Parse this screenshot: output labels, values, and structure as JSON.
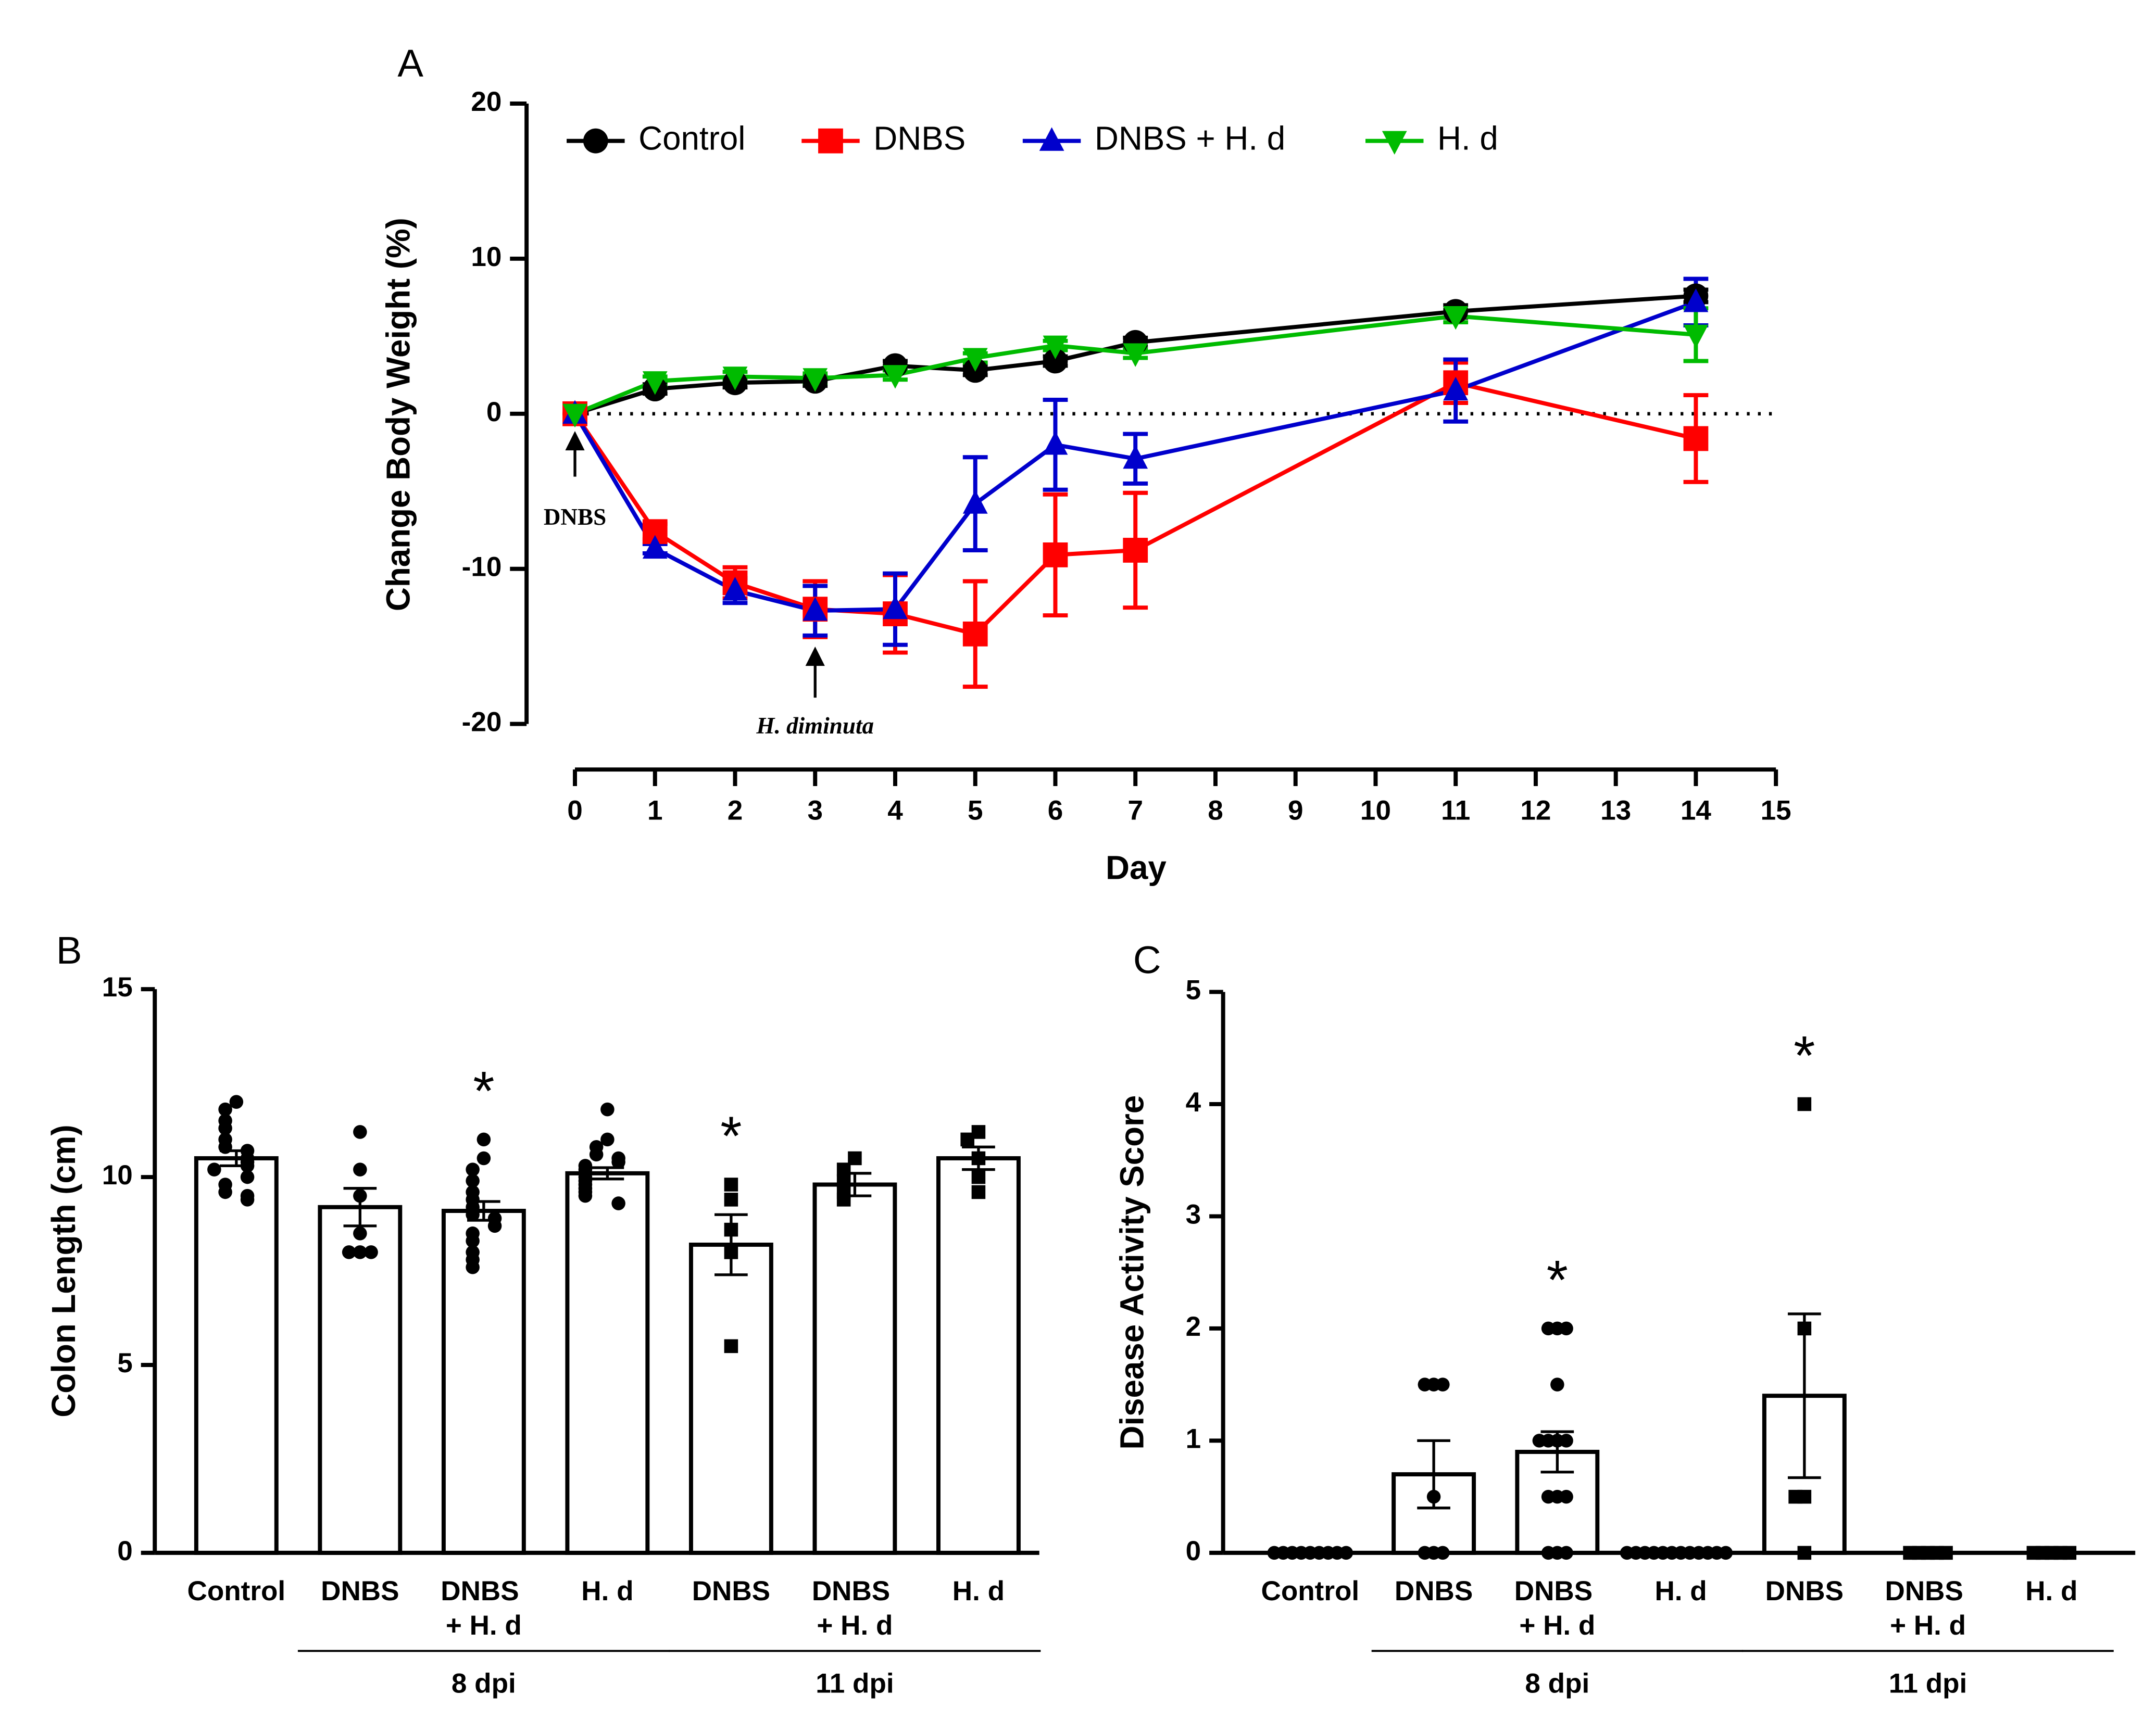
{
  "chart_data": [
    {
      "type": "line",
      "panel_label": "A",
      "ylabel": "Change Body Weight (%)",
      "xlabel": "Day",
      "x": [
        0,
        1,
        2,
        3,
        4,
        5,
        6,
        7,
        11,
        14
      ],
      "xlim": [
        0,
        15
      ],
      "xticks": [
        0,
        1,
        2,
        3,
        4,
        5,
        6,
        7,
        8,
        9,
        10,
        11,
        12,
        13,
        14,
        15
      ],
      "ylim": [
        -20,
        20
      ],
      "yticks": [
        -20,
        -10,
        0,
        10,
        20
      ],
      "hline": 0,
      "series": [
        {
          "name": "Control",
          "color": "#000000",
          "marker": "circle",
          "values": [
            0,
            1.6,
            2.0,
            2.1,
            3.1,
            2.8,
            3.4,
            4.6,
            6.6,
            7.6
          ],
          "errors": [
            0,
            0.3,
            0.3,
            0.3,
            0.3,
            0.3,
            0.3,
            0.3,
            0.4,
            0.4
          ]
        },
        {
          "name": "DNBS",
          "color": "#ff0000",
          "marker": "square",
          "values": [
            0,
            -7.6,
            -10.9,
            -12.6,
            -12.9,
            -14.2,
            -9.1,
            -8.8,
            2.0,
            -1.6
          ],
          "errors": [
            0,
            0.5,
            1.0,
            1.8,
            2.5,
            3.4,
            3.9,
            3.7,
            1.3,
            2.8
          ]
        },
        {
          "name": "DNBS + H. d",
          "color": "#0000cc",
          "marker": "triangle-up",
          "values": [
            0,
            -8.7,
            -11.4,
            -12.7,
            -12.6,
            -5.8,
            -2.0,
            -2.9,
            1.5,
            7.2
          ],
          "errors": [
            0,
            0.3,
            0.8,
            1.6,
            2.3,
            3.0,
            2.9,
            1.6,
            2.0,
            1.5
          ]
        },
        {
          "name": "H. d",
          "color": "#00bb00",
          "marker": "triangle-down",
          "values": [
            0,
            2.1,
            2.4,
            2.3,
            2.5,
            3.6,
            4.4,
            3.9,
            6.3,
            5.1
          ],
          "errors": [
            0,
            0.3,
            0.3,
            0.3,
            0.3,
            0.3,
            0.3,
            0.3,
            0.4,
            1.7
          ]
        }
      ],
      "annotations": [
        {
          "text": "DNBS",
          "x": 0
        },
        {
          "text": "H. diminuta",
          "x": 3
        }
      ]
    },
    {
      "type": "bar",
      "panel_label": "B",
      "ylabel": "Colon Length (cm)",
      "categories": [
        "Control",
        "DNBS",
        "DNBS + H. d",
        "H. d",
        "DNBS",
        "DNBS + H. d",
        "H. d"
      ],
      "values": [
        10.5,
        9.2,
        9.1,
        10.1,
        8.2,
        9.8,
        10.5
      ],
      "errors": [
        0.2,
        0.5,
        0.25,
        0.15,
        0.8,
        0.3,
        0.3
      ],
      "points": [
        [
          12.0,
          11.8,
          11.5,
          11.3,
          11.0,
          10.8,
          10.7,
          10.5,
          10.4,
          10.3,
          10.2,
          10.0,
          9.8,
          9.6,
          9.5,
          9.4
        ],
        [
          11.2,
          10.2,
          9.5,
          8.5,
          8.0,
          8.0,
          8.0
        ],
        [
          11.0,
          10.5,
          10.2,
          9.9,
          9.6,
          9.4,
          9.2,
          9.0,
          8.9,
          8.7,
          8.5,
          8.3,
          8.0,
          7.8,
          7.6
        ],
        [
          11.8,
          11.0,
          10.8,
          10.6,
          10.5,
          10.4,
          10.3,
          10.2,
          10.1,
          10.0,
          9.9,
          9.8,
          9.7,
          9.6,
          9.5,
          9.3
        ],
        [
          9.8,
          9.4,
          8.6,
          8.0,
          5.5
        ],
        [
          10.5,
          10.2,
          9.9,
          9.6,
          9.4
        ],
        [
          11.2,
          11.0,
          10.5,
          10.0,
          9.6
        ]
      ],
      "markers": [
        "circle",
        "circle",
        "circle",
        "circle",
        "square",
        "square",
        "square"
      ],
      "ylim": [
        0,
        15
      ],
      "yticks": [
        0,
        5,
        10,
        15
      ],
      "groups": [
        {
          "label": "8 dpi",
          "start": 1,
          "end": 3
        },
        {
          "label": "11 dpi",
          "start": 4,
          "end": 6
        }
      ],
      "annotations": [
        {
          "index": 2,
          "text": "*"
        },
        {
          "index": 4,
          "text": "*"
        }
      ]
    },
    {
      "type": "bar",
      "panel_label": "C",
      "ylabel": "Disease Activity Score",
      "categories": [
        "Control",
        "DNBS",
        "DNBS + H. d",
        "H. d",
        "DNBS",
        "DNBS + H. d",
        "H. d"
      ],
      "values": [
        0,
        0.7,
        0.9,
        0,
        1.4,
        0,
        0
      ],
      "errors": [
        0,
        0.3,
        0.18,
        0,
        0.73,
        0,
        0
      ],
      "points": [
        [
          0,
          0,
          0,
          0,
          0,
          0,
          0,
          0,
          0
        ],
        [
          1.5,
          1.5,
          1.5,
          0.5,
          0,
          0,
          0
        ],
        [
          2,
          2,
          2,
          1.5,
          1,
          1,
          1,
          1,
          0.5,
          0.5,
          0.5,
          0,
          0,
          0
        ],
        [
          0,
          0,
          0,
          0,
          0,
          0,
          0,
          0,
          0,
          0,
          0,
          0
        ],
        [
          4,
          2,
          0.5,
          0.5,
          0
        ],
        [
          0,
          0,
          0,
          0,
          0
        ],
        [
          0,
          0,
          0,
          0,
          0
        ]
      ],
      "markers": [
        "circle",
        "circle",
        "circle",
        "circle",
        "square",
        "square",
        "square"
      ],
      "ylim": [
        0,
        5
      ],
      "yticks": [
        0,
        1,
        2,
        3,
        4,
        5
      ],
      "groups": [
        {
          "label": "8 dpi",
          "start": 1,
          "end": 3
        },
        {
          "label": "11 dpi",
          "start": 4,
          "end": 6
        }
      ],
      "annotations": [
        {
          "index": 2,
          "text": "*"
        },
        {
          "index": 4,
          "text": "*"
        }
      ]
    }
  ]
}
